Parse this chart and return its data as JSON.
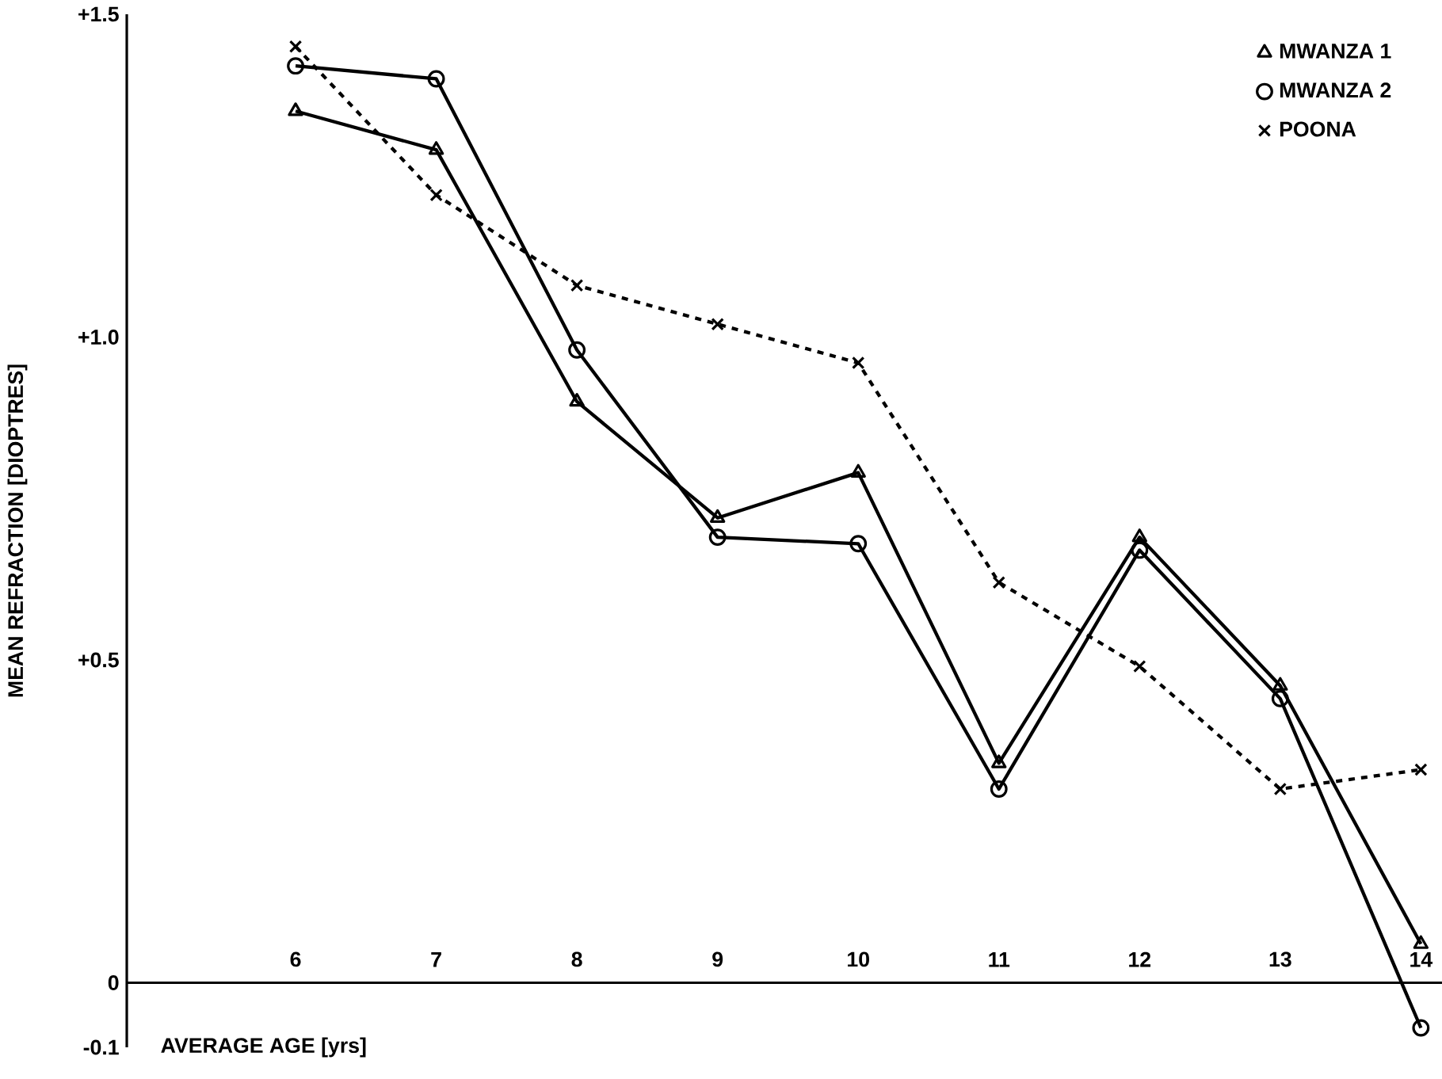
{
  "chart_data": {
    "type": "line",
    "xlabel": "AVERAGE AGE [yrs]",
    "ylabel": "MEAN REFRACTION [DIOPTRES]",
    "x": [
      6,
      7,
      8,
      9,
      10,
      11,
      12,
      13,
      14
    ],
    "xlim": [
      4.8,
      14.15
    ],
    "xticks": [
      6,
      7,
      8,
      9,
      10,
      11,
      12,
      13,
      14
    ],
    "ylim": [
      -0.1,
      1.5
    ],
    "yticks": [
      {
        "value": -0.1,
        "label": "-0.1"
      },
      {
        "value": 0,
        "label": "0"
      },
      {
        "value": 0.5,
        "label": "+0.5"
      },
      {
        "value": 1.0,
        "label": "+1.0"
      },
      {
        "value": 1.5,
        "label": "+1.5"
      }
    ],
    "legend": "top right",
    "series": [
      {
        "name": "MWANZA 1",
        "color": "#000000",
        "marker": "triangle",
        "line_style": "solid",
        "values": [
          1.35,
          1.29,
          0.9,
          0.72,
          0.79,
          0.34,
          0.69,
          0.46,
          0.06
        ]
      },
      {
        "name": "MWANZA 2",
        "color": "#000000",
        "marker": "circle",
        "line_style": "solid",
        "values": [
          1.42,
          1.4,
          0.98,
          0.69,
          0.68,
          0.3,
          0.67,
          0.44,
          -0.07
        ]
      },
      {
        "name": "POONA",
        "color": "#000000",
        "marker": "cross",
        "line_style": "dashed",
        "values": [
          1.45,
          1.22,
          1.08,
          1.02,
          0.96,
          0.62,
          0.49,
          0.3,
          0.33
        ]
      }
    ]
  }
}
